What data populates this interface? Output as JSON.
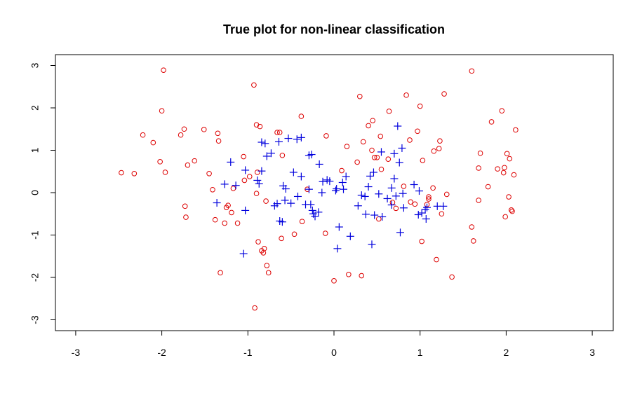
{
  "chart_data": {
    "type": "scatter",
    "title": "True plot for non-linear classification",
    "xlabel": "",
    "ylabel": "",
    "xlim": [
      -3,
      3
    ],
    "ylim": [
      -3,
      3
    ],
    "x_ticks": [
      "-3",
      "-2",
      "-1",
      "0",
      "1",
      "2",
      "3"
    ],
    "y_ticks": [
      "-3",
      "-2",
      "-1",
      "0",
      "1",
      "2",
      "3"
    ],
    "grid": false,
    "legend": "none",
    "series": [
      {
        "marker": "circle",
        "color": "#dd0000",
        "points": [
          [
            -2.47,
            0.47
          ],
          [
            -2.32,
            0.45
          ],
          [
            -2.22,
            1.36
          ],
          [
            -2.1,
            1.18
          ],
          [
            -2.02,
            0.73
          ],
          [
            -2.0,
            1.93
          ],
          [
            -1.98,
            2.89
          ],
          [
            -1.96,
            0.48
          ],
          [
            -1.78,
            1.36
          ],
          [
            -1.74,
            1.5
          ],
          [
            -1.73,
            -0.32
          ],
          [
            -1.72,
            -0.58
          ],
          [
            -1.7,
            0.65
          ],
          [
            -1.62,
            0.75
          ],
          [
            -1.51,
            1.49
          ],
          [
            -1.45,
            0.45
          ],
          [
            -1.41,
            0.07
          ],
          [
            -1.38,
            -0.64
          ],
          [
            -1.35,
            1.4
          ],
          [
            -1.34,
            1.22
          ],
          [
            -1.32,
            -1.89
          ],
          [
            -1.27,
            -0.72
          ],
          [
            -1.25,
            -0.35
          ],
          [
            -1.23,
            -0.3
          ],
          [
            -1.19,
            -0.47
          ],
          [
            -1.17,
            0.1
          ],
          [
            -1.12,
            -0.72
          ],
          [
            -1.05,
            0.85
          ],
          [
            -1.04,
            0.29
          ],
          [
            -0.98,
            0.38
          ],
          [
            -0.93,
            2.54
          ],
          [
            -0.92,
            -2.72
          ],
          [
            -0.9,
            1.6
          ],
          [
            -0.9,
            -0.02
          ],
          [
            -0.89,
            0.48
          ],
          [
            -0.88,
            -1.16
          ],
          [
            -0.86,
            1.56
          ],
          [
            -0.84,
            -1.37
          ],
          [
            -0.82,
            -1.42
          ],
          [
            -0.81,
            -1.32
          ],
          [
            -0.79,
            -0.2
          ],
          [
            -0.78,
            -1.72
          ],
          [
            -0.76,
            -1.89
          ],
          [
            -0.66,
            1.42
          ],
          [
            -0.63,
            1.42
          ],
          [
            -0.61,
            -1.08
          ],
          [
            -0.6,
            0.88
          ],
          [
            -0.46,
            -0.98
          ],
          [
            -0.38,
            1.8
          ],
          [
            -0.37,
            -0.68
          ],
          [
            -0.31,
            0.08
          ],
          [
            -0.09,
            1.34
          ],
          [
            -0.1,
            -0.96
          ],
          [
            0.0,
            -2.08
          ],
          [
            0.09,
            0.52
          ],
          [
            0.15,
            1.09
          ],
          [
            0.17,
            -1.93
          ],
          [
            0.27,
            0.72
          ],
          [
            0.3,
            2.27
          ],
          [
            0.32,
            -1.96
          ],
          [
            0.34,
            1.2
          ],
          [
            0.4,
            1.58
          ],
          [
            0.44,
            1.0
          ],
          [
            0.45,
            1.7
          ],
          [
            0.47,
            0.83
          ],
          [
            0.5,
            0.83
          ],
          [
            0.52,
            -0.62
          ],
          [
            0.54,
            1.33
          ],
          [
            0.55,
            0.55
          ],
          [
            0.63,
            0.79
          ],
          [
            0.64,
            1.92
          ],
          [
            0.68,
            -0.23
          ],
          [
            0.72,
            -0.37
          ],
          [
            0.81,
            0.15
          ],
          [
            0.84,
            2.3
          ],
          [
            0.88,
            1.24
          ],
          [
            0.89,
            -0.22
          ],
          [
            0.94,
            -0.27
          ],
          [
            0.97,
            1.45
          ],
          [
            1.0,
            2.04
          ],
          [
            1.02,
            -1.15
          ],
          [
            1.03,
            0.76
          ],
          [
            1.08,
            -0.28
          ],
          [
            1.1,
            -0.15
          ],
          [
            1.1,
            -0.1
          ],
          [
            1.15,
            0.11
          ],
          [
            1.16,
            0.98
          ],
          [
            1.19,
            -1.58
          ],
          [
            1.22,
            1.04
          ],
          [
            1.23,
            1.22
          ],
          [
            1.25,
            -0.5
          ],
          [
            1.28,
            2.33
          ],
          [
            1.31,
            -0.04
          ],
          [
            1.37,
            -1.99
          ],
          [
            1.6,
            2.87
          ],
          [
            1.6,
            -0.81
          ],
          [
            1.62,
            -1.14
          ],
          [
            1.68,
            0.58
          ],
          [
            1.68,
            -0.18
          ],
          [
            1.7,
            0.93
          ],
          [
            1.79,
            0.14
          ],
          [
            1.83,
            1.67
          ],
          [
            1.9,
            0.56
          ],
          [
            1.95,
            1.93
          ],
          [
            1.97,
            0.47
          ],
          [
            1.98,
            0.59
          ],
          [
            1.99,
            -0.57
          ],
          [
            2.01,
            0.92
          ],
          [
            2.03,
            -0.1
          ],
          [
            2.04,
            0.8
          ],
          [
            2.06,
            -0.41
          ],
          [
            2.07,
            -0.44
          ],
          [
            2.09,
            0.42
          ],
          [
            2.11,
            1.48
          ]
        ]
      },
      {
        "marker": "plus",
        "color": "#0000dd",
        "points": [
          [
            -1.36,
            -0.24
          ],
          [
            -1.27,
            0.2
          ],
          [
            -1.2,
            0.72
          ],
          [
            -1.14,
            0.17
          ],
          [
            -1.03,
            0.53
          ],
          [
            -1.03,
            -0.42
          ],
          [
            -1.05,
            -1.44
          ],
          [
            -0.89,
            0.29
          ],
          [
            -0.87,
            0.21
          ],
          [
            -0.84,
            0.51
          ],
          [
            -0.84,
            1.19
          ],
          [
            -0.8,
            1.16
          ],
          [
            -0.78,
            0.86
          ],
          [
            -0.73,
            0.93
          ],
          [
            -0.69,
            -0.31
          ],
          [
            -0.66,
            -0.26
          ],
          [
            -0.64,
            1.2
          ],
          [
            -0.63,
            -0.67
          ],
          [
            -0.6,
            -0.69
          ],
          [
            -0.59,
            0.16
          ],
          [
            -0.56,
            0.09
          ],
          [
            -0.57,
            -0.18
          ],
          [
            -0.53,
            1.28
          ],
          [
            -0.5,
            -0.25
          ],
          [
            -0.47,
            0.48
          ],
          [
            -0.42,
            -0.09
          ],
          [
            -0.43,
            1.26
          ],
          [
            -0.38,
            0.38
          ],
          [
            -0.38,
            1.3
          ],
          [
            -0.33,
            -0.28
          ],
          [
            -0.29,
            0.08
          ],
          [
            -0.29,
            0.88
          ],
          [
            -0.26,
            0.9
          ],
          [
            -0.27,
            -0.28
          ],
          [
            -0.25,
            -0.42
          ],
          [
            -0.24,
            -0.5
          ],
          [
            -0.22,
            -0.56
          ],
          [
            -0.18,
            -0.46
          ],
          [
            -0.17,
            0.67
          ],
          [
            -0.14,
            0.0
          ],
          [
            -0.13,
            0.26
          ],
          [
            -0.08,
            0.3
          ],
          [
            -0.05,
            0.27
          ],
          [
            0.03,
            0.09
          ],
          [
            0.02,
            0.05
          ],
          [
            0.04,
            -1.32
          ],
          [
            0.06,
            -0.81
          ],
          [
            0.1,
            0.24
          ],
          [
            0.11,
            0.08
          ],
          [
            0.14,
            0.38
          ],
          [
            0.19,
            -1.03
          ],
          [
            0.28,
            -0.31
          ],
          [
            0.32,
            -0.06
          ],
          [
            0.36,
            -0.09
          ],
          [
            0.37,
            -0.51
          ],
          [
            0.4,
            0.14
          ],
          [
            0.42,
            0.39
          ],
          [
            0.44,
            -1.22
          ],
          [
            0.46,
            0.48
          ],
          [
            0.47,
            -0.53
          ],
          [
            0.52,
            -0.03
          ],
          [
            0.55,
            0.96
          ],
          [
            0.56,
            -0.57
          ],
          [
            0.62,
            -0.14
          ],
          [
            0.67,
            -0.29
          ],
          [
            0.67,
            0.11
          ],
          [
            0.7,
            0.33
          ],
          [
            0.7,
            0.92
          ],
          [
            0.72,
            -0.08
          ],
          [
            0.74,
            1.57
          ],
          [
            0.76,
            0.71
          ],
          [
            0.77,
            -0.94
          ],
          [
            0.79,
            1.05
          ],
          [
            0.8,
            -0.02
          ],
          [
            0.81,
            -0.36
          ],
          [
            0.93,
            0.19
          ],
          [
            0.98,
            -0.52
          ],
          [
            0.99,
            0.04
          ],
          [
            1.02,
            -0.48
          ],
          [
            1.06,
            -0.4
          ],
          [
            1.07,
            -0.62
          ],
          [
            1.08,
            -0.35
          ],
          [
            1.2,
            -0.32
          ],
          [
            1.27,
            -0.32
          ]
        ]
      }
    ]
  }
}
